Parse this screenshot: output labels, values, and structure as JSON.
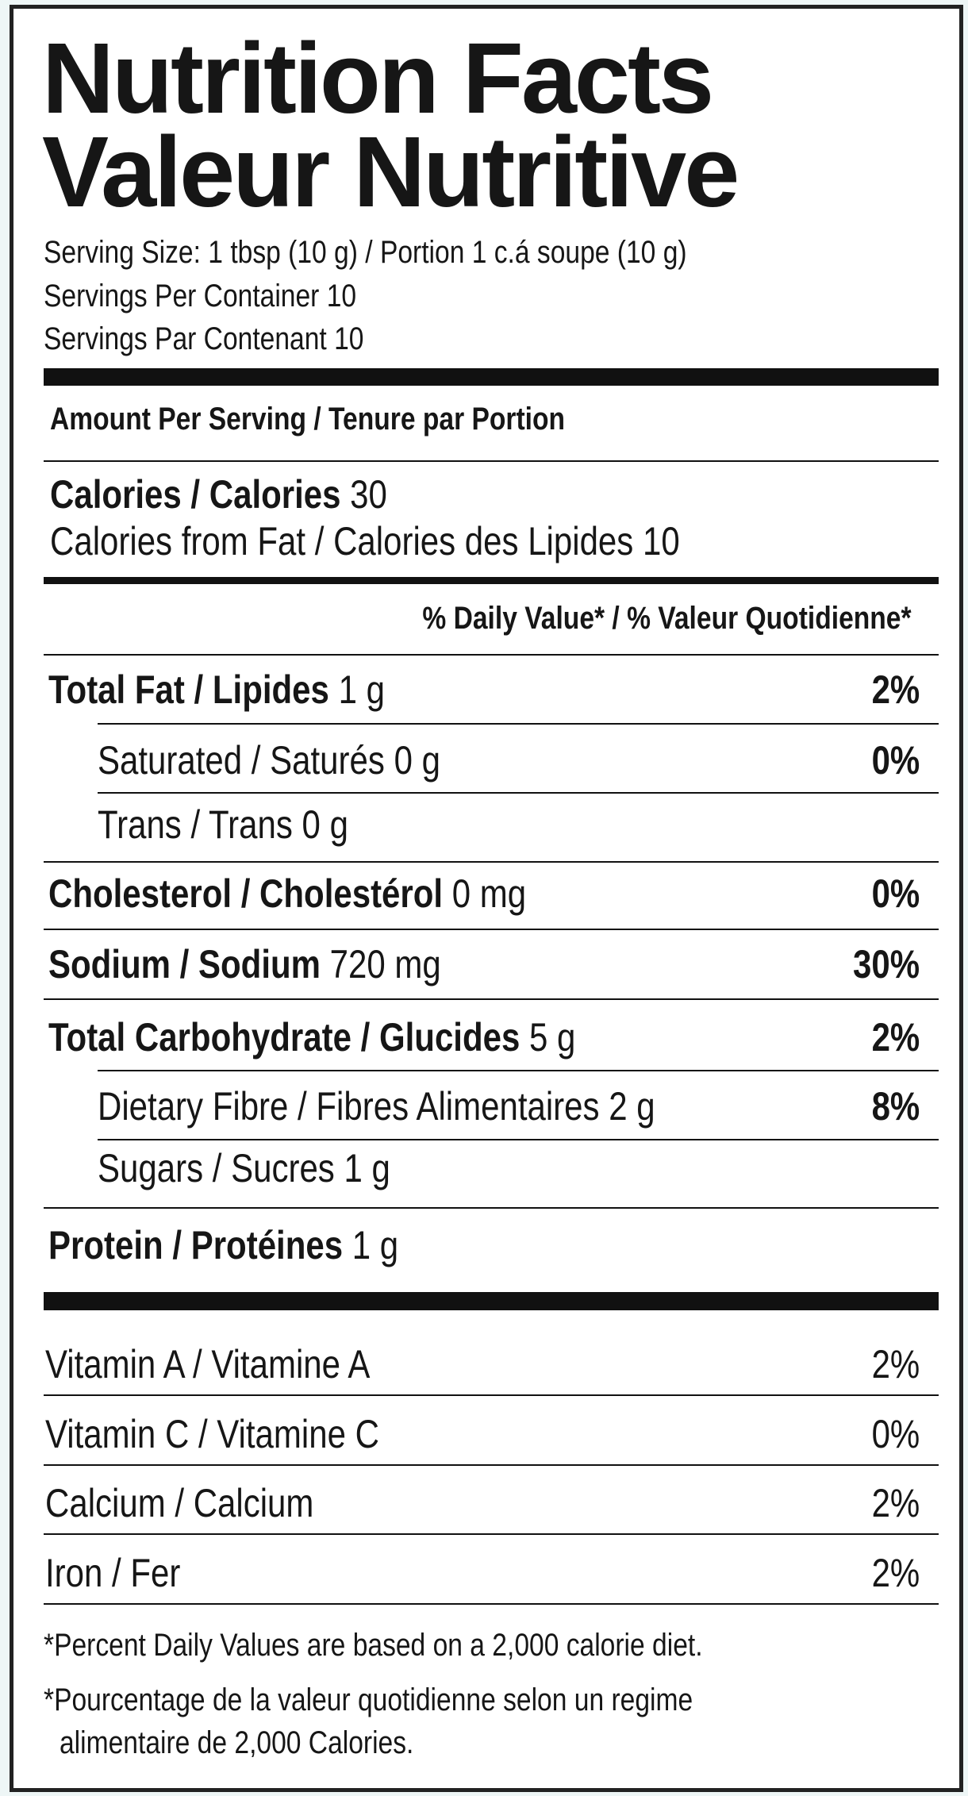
{
  "header": {
    "title": [
      "Nutrition Facts",
      "Valeur Nutritive"
    ],
    "serving_size": "Serving Size: 1 tbsp (10 g) / Portion 1 c.á soupe (10 g)",
    "servings_per_container": "Servings Per Container 10",
    "servings_par_contenant": "Servings Par Contenant 10"
  },
  "amount_per_serving": "Amount Per Serving / Tenure par Portion",
  "calories": {
    "label": "Calories / Calories",
    "amount": "30"
  },
  "calories_from_fat": "Calories from Fat / Calories des Lipides 10",
  "daily_value_header": "% Daily Value* / % Valeur Quotidienne*",
  "nutrients": [
    {
      "label": "Total Fat / Lipides",
      "amount": "1 g",
      "percent": "2%"
    },
    {
      "label": "Saturated / Saturés",
      "amount": "0 g",
      "percent": "0%"
    },
    {
      "label": "Trans / Trans",
      "amount": "0 g"
    },
    {
      "label": "Cholesterol / Cholestérol",
      "amount": "0 mg",
      "percent": "0%"
    },
    {
      "label": "Sodium / Sodium",
      "amount": "720 mg",
      "percent": "30%"
    },
    {
      "label": "Total Carbohydrate / Glucides",
      "amount": "5 g",
      "percent": "2%"
    },
    {
      "label": "Dietary Fibre / Fibres Alimentaires",
      "amount": "2 g",
      "percent": "8%"
    },
    {
      "label": "Sugars / Sucres",
      "amount": "1 g"
    },
    {
      "label": "Protein / Protéines",
      "amount": "1 g"
    }
  ],
  "vitamins": [
    {
      "label": "Vitamin A / Vitamine A",
      "percent": "2%"
    },
    {
      "label": "Vitamin C / Vitamine C",
      "percent": "0%"
    },
    {
      "label": "Calcium / Calcium",
      "percent": "2%"
    },
    {
      "label": "Iron / Fer",
      "percent": "2%"
    }
  ],
  "footnotes": [
    "*Percent Daily Values are based on a 2,000 calorie diet.",
    "*Pourcentage de la valeur quotidienne selon un regime",
    "alimentaire de 2,000 Calories."
  ]
}
